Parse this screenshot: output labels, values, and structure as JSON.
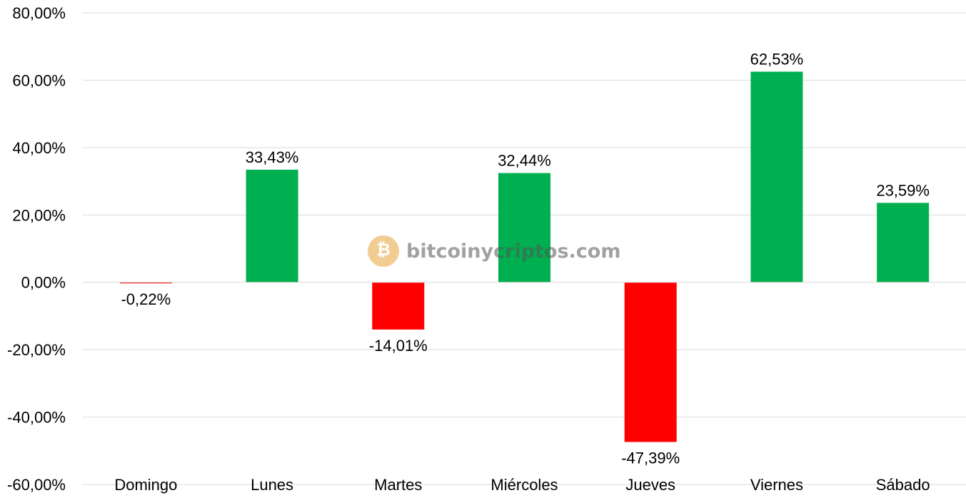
{
  "chart_data": {
    "type": "bar",
    "categories": [
      "Domingo",
      "Lunes",
      "Martes",
      "Miércoles",
      "Jueves",
      "Viernes",
      "Sábado"
    ],
    "values": [
      -0.22,
      33.43,
      -14.01,
      32.44,
      -47.39,
      62.53,
      23.59
    ],
    "data_labels": [
      "-0,22%",
      "33,43%",
      "-14,01%",
      "32,44%",
      "-47,39%",
      "62,53%",
      "23,59%"
    ],
    "y_ticks": [
      80,
      60,
      40,
      20,
      0,
      -20,
      -40,
      -60
    ],
    "y_tick_labels": [
      "80,00%",
      "60,00%",
      "40,00%",
      "20,00%",
      "0,00%",
      "-20,00%",
      "-40,00%",
      "-60,00%"
    ],
    "ylim": [
      -60,
      80
    ],
    "grid": true,
    "colors": {
      "positive": "#00b050",
      "negative": "#ff0000"
    }
  },
  "watermark": {
    "text": "bitcoinycriptos.com",
    "icon": "bitcoin-microphone-icon"
  }
}
